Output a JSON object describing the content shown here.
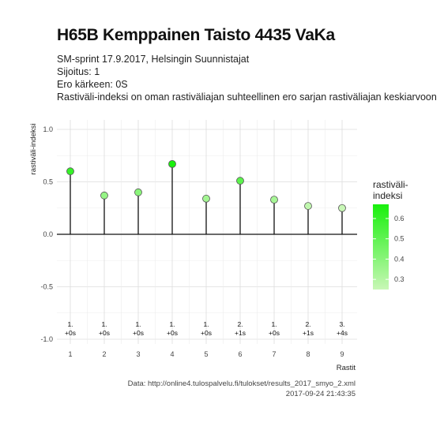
{
  "header": {
    "title": "H65B Kemppainen Taisto 4435 VaKa",
    "line1": "SM-sprint 17.9.2017, Helsingin Suunnistajat",
    "line2": "Sijoitus: 1",
    "line3": "Ero kärkeen: 0S",
    "line4": "Rastiväli-indeksi on oman rastiväliajan suhteellinen ero sarjan rastiväliajan keskiarvoon"
  },
  "caption": {
    "source": "Data: http://online4.tulospalvelu.fi/tulokset/results_2017_smyo_2.xml",
    "timestamp": "2017-09-24 21:43:35"
  },
  "chart_data": {
    "type": "lollipop",
    "xlabel": "Rastit",
    "ylabel": "rastiväli-indeksi",
    "x": [
      1,
      2,
      3,
      4,
      5,
      6,
      7,
      8,
      9
    ],
    "values": [
      0.6,
      0.37,
      0.4,
      0.67,
      0.34,
      0.51,
      0.33,
      0.27,
      0.25
    ],
    "rank_labels": [
      "1.",
      "1.",
      "1.",
      "1.",
      "1.",
      "2.",
      "1.",
      "2.",
      "3."
    ],
    "diff_labels": [
      "+0s",
      "+0s",
      "+0s",
      "+0s",
      "+0s",
      "+1s",
      "+0s",
      "+1s",
      "+4s"
    ],
    "ylim": [
      -1.0,
      1.0
    ],
    "yticks": [
      -1.0,
      -0.5,
      0.0,
      0.5,
      1.0
    ],
    "ytick_labels": [
      "-1.0",
      "-0.5",
      "0.0",
      "0.5",
      "1.0"
    ],
    "xticks": [
      "1",
      "2",
      "3",
      "4",
      "5",
      "6",
      "7",
      "8",
      "9"
    ],
    "grid": true,
    "legend": {
      "title_line1": "rastiväli-",
      "title_line2": "indeksi",
      "ticks": [
        0.3,
        0.4,
        0.5,
        0.6
      ],
      "tick_labels": [
        "0.3",
        "0.4",
        "0.5",
        "0.6"
      ],
      "range": [
        0.25,
        0.67
      ],
      "low_color": "#c8f7b6",
      "high_color": "#19f00d",
      "placement": "right"
    }
  }
}
